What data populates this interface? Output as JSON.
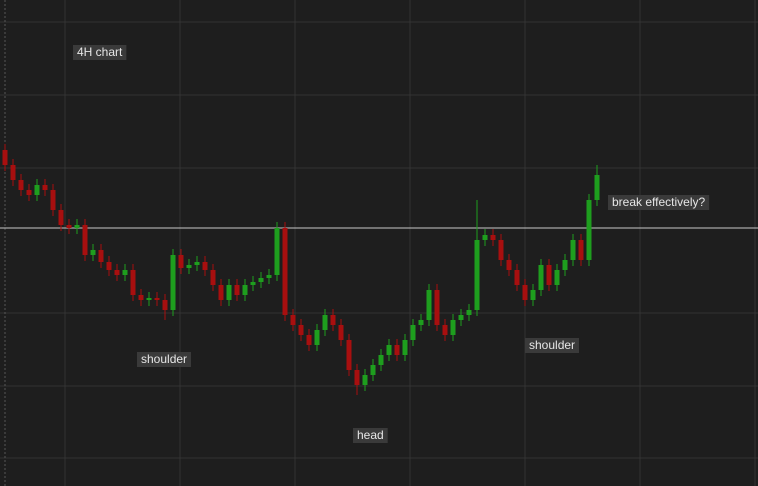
{
  "chart_data": {
    "type": "candlestick",
    "up_color": "#1e9e1e",
    "down_color": "#a80f0f",
    "neckline_color": "#c8c8c8",
    "ylim": [
      0,
      486
    ],
    "grid": true,
    "open": [
      336,
      321,
      306,
      296,
      291,
      301,
      296,
      276,
      261,
      258,
      261,
      231,
      236,
      224,
      216,
      211,
      216,
      191,
      186,
      188,
      186,
      176,
      231,
      218,
      221,
      224,
      216,
      201,
      186,
      201,
      191,
      201,
      204,
      208,
      211,
      258,
      171,
      161,
      151,
      141,
      156,
      171,
      161,
      146,
      116,
      101,
      111,
      121,
      131,
      141,
      131,
      146,
      161,
      166,
      196,
      161,
      151,
      166,
      171,
      176,
      246,
      251,
      246,
      226,
      216,
      201,
      186,
      196,
      221,
      201,
      216,
      226,
      246,
      226,
      286
    ],
    "high": [
      342,
      327,
      312,
      302,
      307,
      307,
      302,
      282,
      267,
      267,
      267,
      242,
      242,
      230,
      222,
      222,
      222,
      197,
      194,
      194,
      192,
      237,
      237,
      227,
      230,
      230,
      222,
      207,
      207,
      207,
      207,
      210,
      214,
      217,
      264,
      264,
      177,
      167,
      157,
      162,
      177,
      177,
      167,
      152,
      122,
      117,
      127,
      137,
      147,
      147,
      152,
      167,
      172,
      202,
      202,
      167,
      172,
      177,
      182,
      286,
      257,
      257,
      252,
      232,
      222,
      207,
      202,
      227,
      227,
      222,
      232,
      252,
      252,
      292,
      321
    ],
    "low": [
      315,
      300,
      290,
      285,
      285,
      290,
      270,
      255,
      252,
      252,
      225,
      225,
      218,
      210,
      205,
      205,
      185,
      180,
      180,
      180,
      166,
      170,
      212,
      212,
      215,
      210,
      195,
      180,
      180,
      185,
      185,
      195,
      198,
      202,
      205,
      165,
      155,
      145,
      135,
      135,
      150,
      155,
      140,
      110,
      91,
      95,
      105,
      115,
      125,
      125,
      125,
      140,
      155,
      160,
      155,
      145,
      145,
      160,
      165,
      170,
      240,
      240,
      220,
      210,
      195,
      180,
      180,
      190,
      195,
      195,
      210,
      220,
      220,
      220,
      280
    ],
    "close": [
      321,
      306,
      296,
      291,
      301,
      296,
      276,
      261,
      258,
      261,
      231,
      236,
      224,
      216,
      211,
      216,
      191,
      186,
      188,
      186,
      176,
      231,
      218,
      221,
      224,
      216,
      201,
      186,
      201,
      191,
      201,
      204,
      208,
      211,
      258,
      171,
      161,
      151,
      141,
      156,
      171,
      161,
      146,
      116,
      101,
      111,
      121,
      131,
      141,
      131,
      146,
      161,
      166,
      196,
      161,
      151,
      166,
      171,
      176,
      246,
      251,
      246,
      226,
      216,
      201,
      186,
      196,
      221,
      201,
      216,
      226,
      246,
      226,
      286,
      311
    ],
    "neckline": 258,
    "annotations": [
      "4H chart",
      "shoulder",
      "head",
      "shoulder",
      "break effectively?"
    ]
  }
}
